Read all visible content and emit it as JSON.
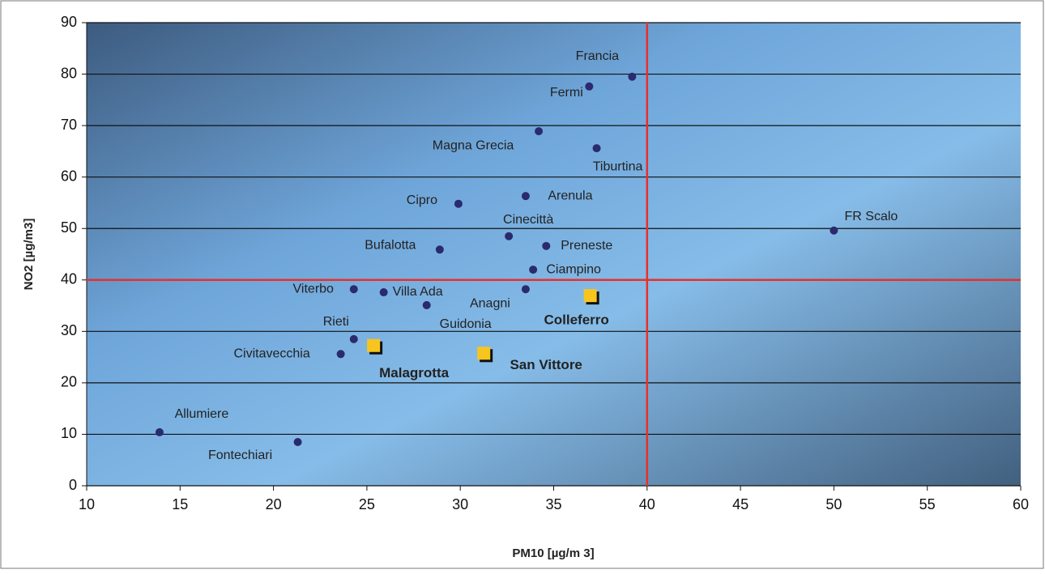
{
  "chart_data": {
    "type": "scatter",
    "x_label": "PM10 [µg/m 3]",
    "y_label": "NO2 [µg/m3]",
    "xlim": [
      10,
      60
    ],
    "xticks": [
      10,
      15,
      20,
      25,
      30,
      35,
      40,
      45,
      50,
      55,
      60
    ],
    "ylim": [
      0,
      90
    ],
    "yticks": [
      0,
      10,
      20,
      30,
      40,
      50,
      60,
      70,
      80,
      90
    ],
    "grid": true,
    "threshold_x": 40,
    "threshold_y": 40,
    "threshold_color": "#e8302a",
    "series": [
      {
        "marker": "circle",
        "color": "#2b2a6e",
        "labels": [
          "Francia",
          "Fermi",
          "Magna Grecia",
          "Tiburtina",
          "Arenula",
          "Cipro",
          "Cinecittà",
          "FR Scalo",
          "Preneste",
          "Bufalotta",
          "Ciampino",
          "Viterbo",
          "Villa Ada",
          "Anagni",
          "Guidonia",
          "Rieti",
          "Civitavecchia",
          "Allumiere",
          "Fontechiari"
        ],
        "x": [
          39.2,
          36.9,
          34.2,
          37.3,
          33.5,
          29.9,
          32.6,
          50.0,
          34.6,
          28.9,
          33.9,
          24.3,
          25.9,
          33.5,
          28.2,
          24.3,
          23.6,
          13.9,
          21.3
        ],
        "values": [
          79.5,
          77.6,
          68.9,
          65.6,
          56.3,
          54.8,
          48.5,
          49.6,
          46.6,
          45.9,
          42.0,
          38.2,
          37.6,
          38.2,
          35.1,
          28.5,
          25.6,
          10.4,
          8.5
        ]
      },
      {
        "marker": "square",
        "color": "#f7c51e",
        "labels": [
          "Colleferro",
          "Malagrotta",
          "San Vittore"
        ],
        "x": [
          37.0,
          25.4,
          31.3
        ],
        "values": [
          36.8,
          27.1,
          25.6
        ]
      }
    ]
  }
}
